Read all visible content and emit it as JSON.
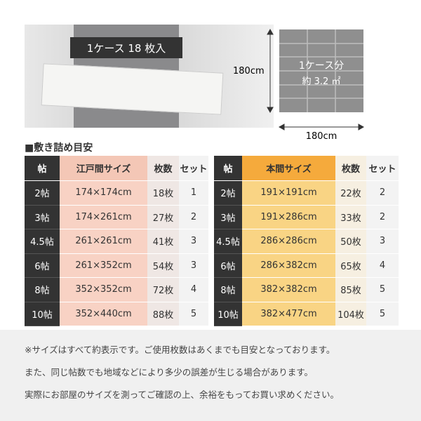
{
  "photo": {
    "label": "1ケース 18 枚入"
  },
  "diagram": {
    "height_label": "180cm",
    "width_label": "180cm",
    "title": "1ケース分",
    "area": "約 3.2 ㎡"
  },
  "section_title": "■敷き詰め目安",
  "tables": [
    {
      "headers": [
        "帖",
        "江戸間サイズ",
        "枚数",
        "セット"
      ],
      "rows": [
        [
          "2帖",
          "174×174cm",
          "18枚",
          "1"
        ],
        [
          "3帖",
          "174×261cm",
          "27枚",
          "2"
        ],
        [
          "4.5帖",
          "261×261cm",
          "41枚",
          "3"
        ],
        [
          "6帖",
          "261×352cm",
          "54枚",
          "3"
        ],
        [
          "8帖",
          "352×352cm",
          "72枚",
          "4"
        ],
        [
          "10帖",
          "352×440cm",
          "88枚",
          "5"
        ]
      ]
    },
    {
      "headers": [
        "帖",
        "本間サイズ",
        "枚数",
        "セット"
      ],
      "rows": [
        [
          "2帖",
          "191×191cm",
          "22枚",
          "2"
        ],
        [
          "3帖",
          "191×286cm",
          "33枚",
          "2"
        ],
        [
          "4.5帖",
          "286×286cm",
          "50枚",
          "3"
        ],
        [
          "6帖",
          "286×382cm",
          "65枚",
          "4"
        ],
        [
          "8帖",
          "382×382cm",
          "85枚",
          "5"
        ],
        [
          "10帖",
          "382×477cm",
          "104枚",
          "5"
        ]
      ]
    }
  ],
  "notes": [
    "※サイズはすべて約表示です。ご使用枚数はあくまでも目安となっております。",
    "また、同じ帖数でも地域などにより多少の誤差が生じる場合があります。",
    "実際にお部屋のサイズを測ってご確認の上、余裕をもってお買い求めください。"
  ]
}
